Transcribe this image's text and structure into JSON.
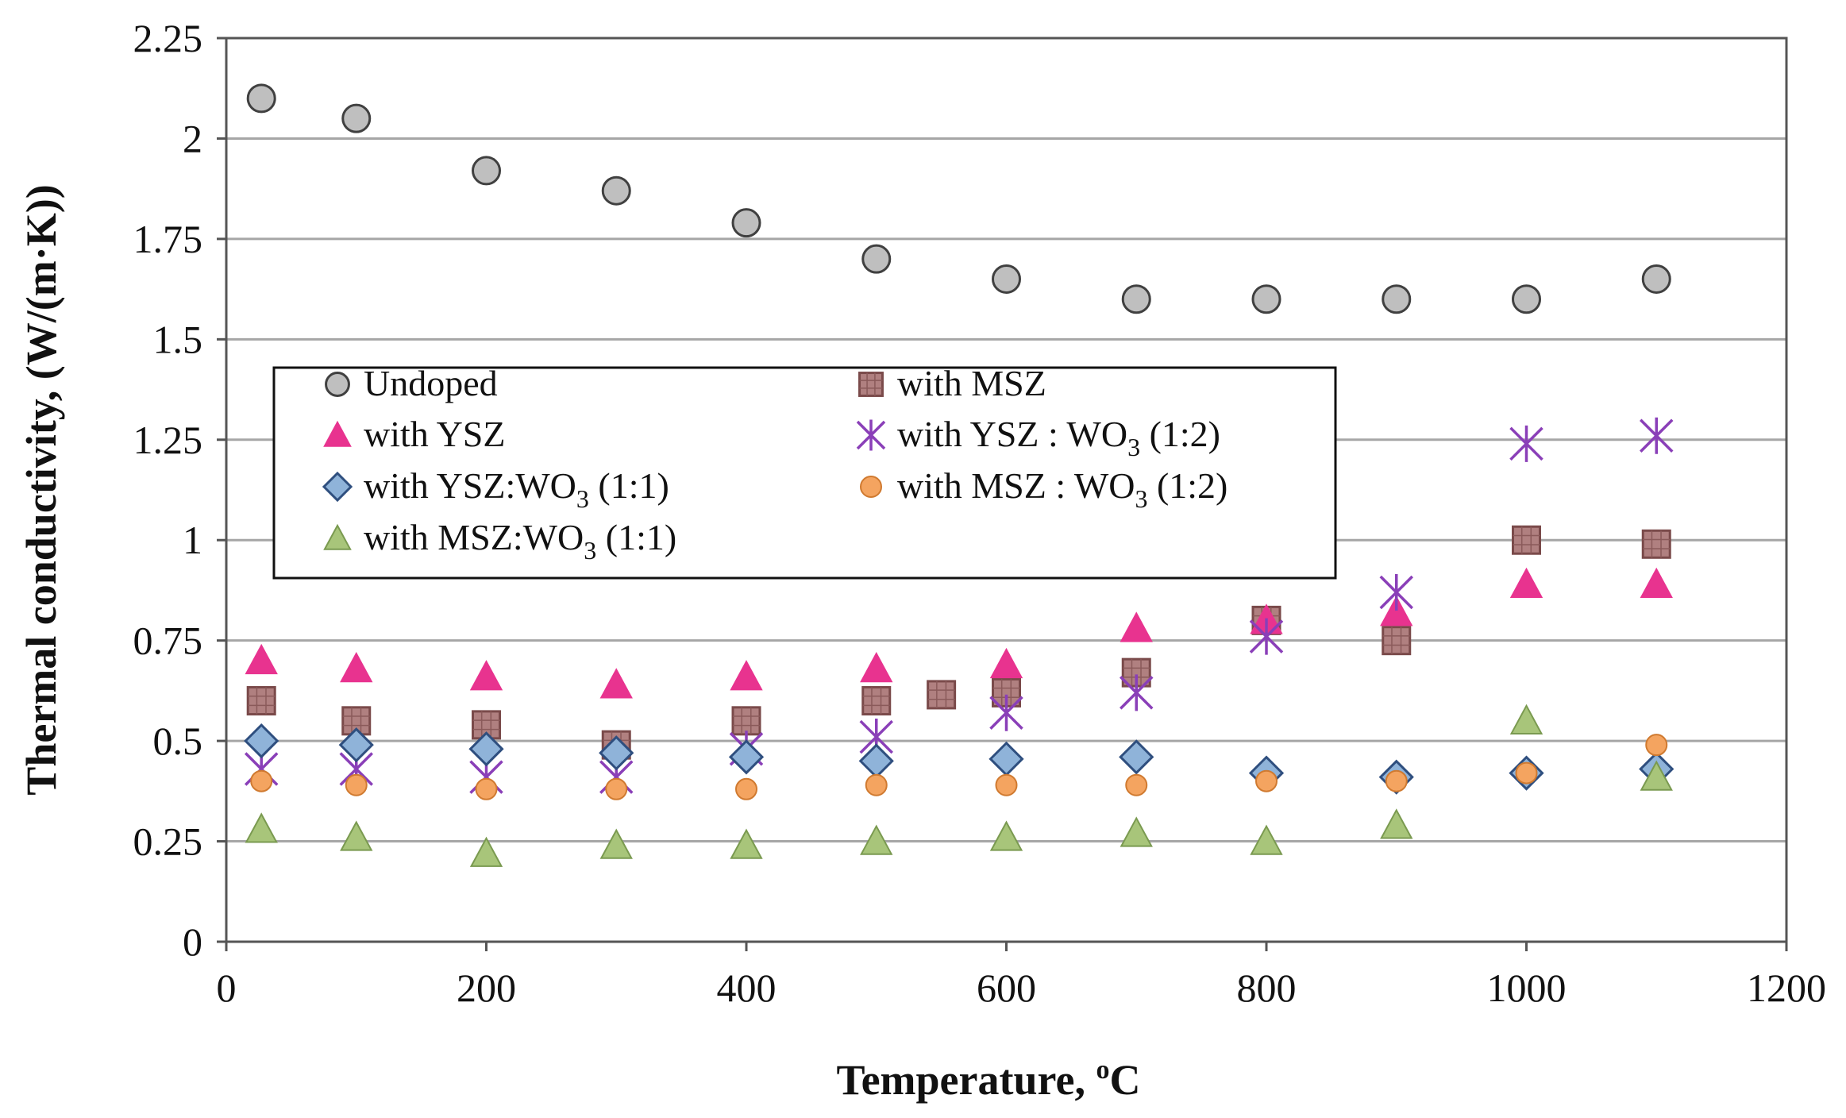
{
  "chart_data": {
    "type": "scatter",
    "title": "",
    "xlabel": "Temperature, ",
    "xlabel_sup": "o",
    "xlabel_unit": "C",
    "ylabel": "Thermal conductivity, (W/(m·K))",
    "xlim": [
      0,
      1200
    ],
    "ylim": [
      0,
      2.25
    ],
    "xticks": [
      0,
      200,
      400,
      600,
      800,
      1000,
      1200
    ],
    "yticks": [
      0,
      0.25,
      0.5,
      0.75,
      1,
      1.25,
      1.5,
      1.75,
      2,
      2.25
    ],
    "xtick_labels": [
      "0",
      "200",
      "400",
      "600",
      "800",
      "1000",
      "1200"
    ],
    "ytick_labels": [
      "0",
      "0.25",
      "0.5",
      "0.75",
      "1",
      "1.25",
      "1.5",
      "1.75",
      "2",
      "2.25"
    ],
    "grid": "horizontal",
    "legend_placement": "upper-left inside plot, two columns",
    "series": [
      {
        "name": "Undoped",
        "label_main": "Undoped",
        "label_sub": "",
        "label_tail": "",
        "marker": "circle",
        "fill": "#bfbfbf",
        "stroke": "#404040",
        "x": [
          27,
          100,
          200,
          300,
          400,
          500,
          600,
          700,
          800,
          900,
          1000,
          1100
        ],
        "y": [
          2.1,
          2.05,
          1.92,
          1.87,
          1.79,
          1.7,
          1.65,
          1.6,
          1.6,
          1.6,
          1.6,
          1.65
        ]
      },
      {
        "name": "with MSZ",
        "label_main": "with MSZ",
        "label_sub": "",
        "label_tail": "",
        "marker": "square",
        "fill": "#b08080",
        "stroke": "#7a4a4a",
        "x": [
          27,
          100,
          200,
          300,
          400,
          500,
          550,
          600,
          700,
          800,
          900,
          1000,
          1100
        ],
        "y": [
          0.6,
          0.55,
          0.54,
          0.49,
          0.55,
          0.6,
          0.615,
          0.62,
          0.67,
          0.8,
          0.75,
          1.0,
          0.99
        ]
      },
      {
        "name": "with YSZ",
        "label_main": "with YSZ",
        "label_sub": "",
        "label_tail": "",
        "marker": "triangle",
        "fill": "#e8338f",
        "stroke": "#e8338f",
        "x": [
          27,
          100,
          200,
          300,
          400,
          500,
          600,
          700,
          800,
          900,
          1000,
          1100
        ],
        "y": [
          0.7,
          0.68,
          0.66,
          0.64,
          0.66,
          0.68,
          0.69,
          0.78,
          0.8,
          0.82,
          0.89,
          0.89
        ]
      },
      {
        "name": "with YSZ : WO3 (1:2)",
        "label_main": "with YSZ : WO",
        "label_sub": "3",
        "label_tail": " (1:2)",
        "marker": "star",
        "fill": "none",
        "stroke": "#8a3fb8",
        "x": [
          27,
          100,
          200,
          300,
          400,
          500,
          600,
          700,
          800,
          900,
          1000,
          1100
        ],
        "y": [
          0.43,
          0.43,
          0.41,
          0.41,
          0.48,
          0.51,
          0.57,
          0.62,
          0.76,
          0.87,
          1.24,
          1.26
        ]
      },
      {
        "name": "with YSZ:WO3 (1:1)",
        "label_main": "with YSZ:WO",
        "label_sub": "3",
        "label_tail": " (1:1)",
        "marker": "diamond",
        "fill": "#8fb3d9",
        "stroke": "#2f4f7f",
        "x": [
          27,
          100,
          200,
          300,
          400,
          500,
          600,
          700,
          800,
          900,
          1000,
          1100
        ],
        "y": [
          0.5,
          0.49,
          0.48,
          0.47,
          0.46,
          0.45,
          0.455,
          0.46,
          0.42,
          0.41,
          0.42,
          0.43
        ]
      },
      {
        "name": "with MSZ : WO3 (1:2)",
        "label_main": "with MSZ : WO",
        "label_sub": "3",
        "label_tail": " (1:2)",
        "marker": "smallcircle",
        "fill": "#f4a460",
        "stroke": "#d07a30",
        "x": [
          27,
          100,
          200,
          300,
          400,
          500,
          600,
          700,
          800,
          900,
          1000,
          1100
        ],
        "y": [
          0.4,
          0.39,
          0.38,
          0.38,
          0.38,
          0.39,
          0.39,
          0.39,
          0.4,
          0.4,
          0.42,
          0.49
        ]
      },
      {
        "name": "with MSZ:WO3 (1:1)",
        "label_main": "with MSZ:WO",
        "label_sub": "3",
        "label_tail": " (1:1)",
        "marker": "triangle",
        "fill": "#a8c57a",
        "stroke": "#7a9a50",
        "x": [
          27,
          100,
          200,
          300,
          400,
          500,
          600,
          700,
          800,
          900,
          1000,
          1100
        ],
        "y": [
          0.28,
          0.26,
          0.22,
          0.24,
          0.24,
          0.25,
          0.26,
          0.27,
          0.25,
          0.29,
          0.55,
          0.41
        ]
      }
    ],
    "legend_order": [
      [
        "Undoped",
        "with MSZ"
      ],
      [
        "with YSZ",
        "with YSZ : WO3 (1:2)"
      ],
      [
        "with YSZ:WO3 (1:1)",
        "with MSZ : WO3 (1:2)"
      ],
      [
        "with MSZ:WO3 (1:1)",
        null
      ]
    ]
  }
}
